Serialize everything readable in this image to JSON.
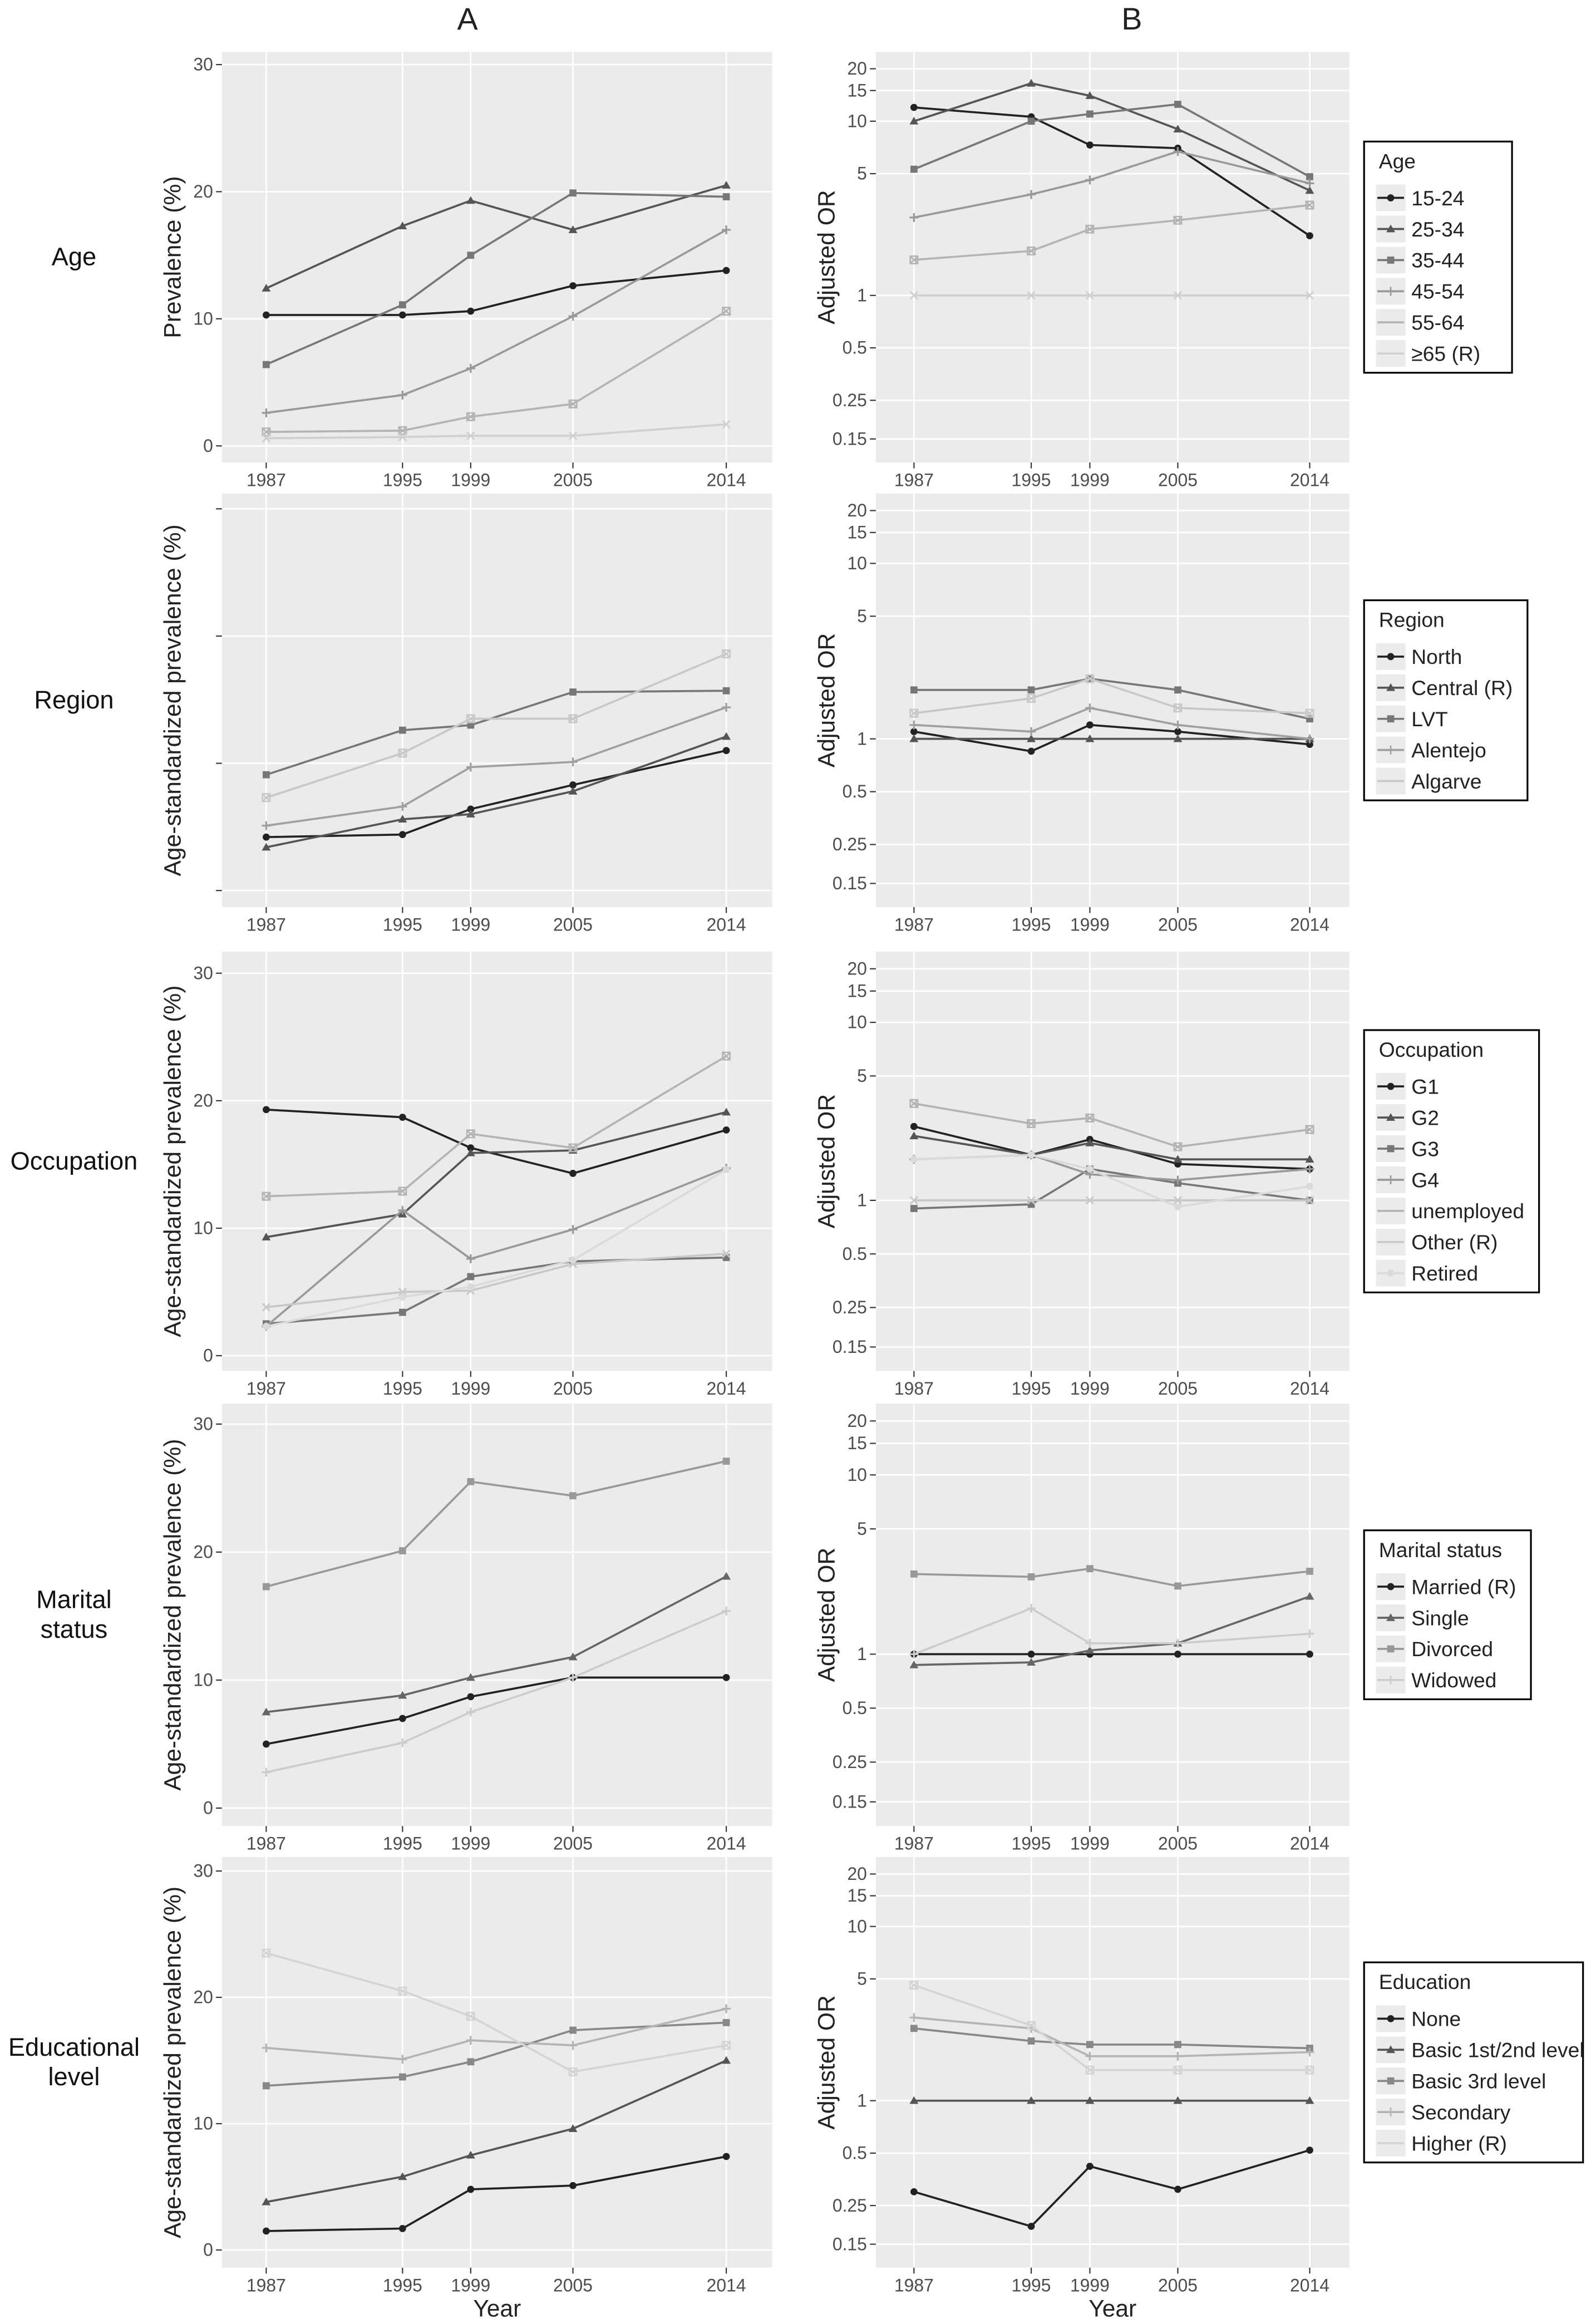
{
  "column_labels": [
    "A",
    "B"
  ],
  "row_labels": [
    "Age",
    "Region",
    "Occupation",
    "Marital status",
    "Educational level"
  ],
  "chart_data": [
    {
      "type": "line",
      "ylabel": "Prevalence (%)",
      "x": [
        1987,
        1995,
        1999,
        2005,
        2014
      ],
      "xlim": [
        1984.4,
        2016.7
      ],
      "xticks": [
        1987,
        1995,
        1999,
        2005,
        2014
      ],
      "ylim": [
        -1.3,
        31
      ],
      "yticks": [
        0,
        10,
        20,
        30
      ],
      "log_y": false,
      "grid": true,
      "series": [
        {
          "color": "#222222",
          "values": [
            10.3,
            10.3,
            10.6,
            12.6,
            13.8
          ]
        },
        {
          "color": "#555555",
          "values": [
            12.4,
            17.3,
            19.3,
            17.0,
            20.5
          ]
        },
        {
          "color": "#777777",
          "values": [
            6.4,
            11.1,
            15.0,
            19.9,
            19.6
          ]
        },
        {
          "color": "#999999",
          "values": [
            2.6,
            4.0,
            6.1,
            10.2,
            17.0
          ]
        },
        {
          "color": "#b4b4b4",
          "values": [
            1.1,
            1.2,
            2.3,
            3.3,
            10.6
          ]
        },
        {
          "color": "#d0d0d0",
          "values": [
            0.6,
            0.7,
            0.8,
            0.8,
            1.7
          ]
        }
      ]
    },
    {
      "type": "line",
      "ylabel": "Adjusted OR",
      "legend_title": "Age",
      "x": [
        1987,
        1995,
        1999,
        2005,
        2014
      ],
      "xlim": [
        1984.4,
        2016.7
      ],
      "xticks": [
        1987,
        1995,
        1999,
        2005,
        2014
      ],
      "ylim": [
        0.11,
        25
      ],
      "yticks": [
        0.15,
        0.25,
        0.5,
        1,
        5,
        10,
        15,
        20
      ],
      "log_y": true,
      "grid": true,
      "series": [
        {
          "name": "15-24",
          "color": "#222222",
          "values": [
            12,
            10.6,
            7.3,
            7,
            2.2
          ]
        },
        {
          "name": "25-34",
          "color": "#555555",
          "values": [
            10,
            16.5,
            14,
            9,
            4
          ]
        },
        {
          "name": "35-44",
          "color": "#777777",
          "values": [
            5.3,
            10,
            11,
            12.5,
            4.8
          ]
        },
        {
          "name": "45-54",
          "color": "#999999",
          "values": [
            2.8,
            3.8,
            4.6,
            6.7,
            4.4
          ]
        },
        {
          "name": "55-64",
          "color": "#b4b4b4",
          "values": [
            1.6,
            1.8,
            2.4,
            2.7,
            3.3
          ]
        },
        {
          "name": "≥65 (R)",
          "color": "#d0d0d0",
          "values": [
            1,
            1,
            1,
            1,
            1
          ]
        }
      ]
    },
    {
      "type": "line",
      "ylabel": "Age-standardized prevalence (%)",
      "x": [
        1987,
        1995,
        1999,
        2005,
        2014
      ],
      "xlim": [
        1984.4,
        2016.7
      ],
      "xticks": [
        1987,
        1995,
        1999,
        2005,
        2014
      ],
      "ylim": [
        -1.3,
        31.2
      ],
      "yticks": [
        0,
        10,
        20,
        30
      ],
      "ytick_labels": false,
      "log_y": false,
      "grid": true,
      "series": [
        {
          "color": "#222222",
          "values": [
            4.2,
            4.4,
            6.4,
            8.3,
            11.0
          ]
        },
        {
          "color": "#555555",
          "values": [
            3.4,
            5.6,
            6.0,
            7.8,
            12.1
          ]
        },
        {
          "color": "#777777",
          "values": [
            9.1,
            12.6,
            13.0,
            15.6,
            15.7
          ]
        },
        {
          "color": "#a0a0a0",
          "values": [
            5.1,
            6.6,
            9.7,
            10.1,
            14.4
          ]
        },
        {
          "color": "#c8c8c8",
          "values": [
            7.3,
            10.8,
            13.5,
            13.5,
            18.6
          ]
        }
      ]
    },
    {
      "type": "line",
      "ylabel": "Adjusted OR",
      "legend_title": "Region",
      "x": [
        1987,
        1995,
        1999,
        2005,
        2014
      ],
      "xlim": [
        1984.4,
        2016.7
      ],
      "xticks": [
        1987,
        1995,
        1999,
        2005,
        2014
      ],
      "ylim": [
        0.11,
        25
      ],
      "yticks": [
        0.15,
        0.25,
        0.5,
        1,
        5,
        10,
        15,
        20
      ],
      "log_y": true,
      "grid": true,
      "series": [
        {
          "name": "North",
          "color": "#222222",
          "values": [
            1.1,
            0.85,
            1.2,
            1.1,
            0.93
          ]
        },
        {
          "name": "Central (R)",
          "color": "#555555",
          "values": [
            1,
            1,
            1,
            1,
            1
          ]
        },
        {
          "name": "LVT",
          "color": "#777777",
          "values": [
            1.9,
            1.9,
            2.2,
            1.9,
            1.3
          ]
        },
        {
          "name": "Alentejo",
          "color": "#a0a0a0",
          "values": [
            1.2,
            1.1,
            1.5,
            1.2,
            1.0
          ]
        },
        {
          "name": "Algarve",
          "color": "#c8c8c8",
          "values": [
            1.4,
            1.7,
            2.2,
            1.5,
            1.4
          ]
        }
      ]
    },
    {
      "type": "line",
      "ylabel": "Age-standardized prevalence (%)",
      "x": [
        1987,
        1995,
        1999,
        2005,
        2014
      ],
      "xlim": [
        1984.4,
        2016.7
      ],
      "xticks": [
        1987,
        1995,
        1999,
        2005,
        2014
      ],
      "ylim": [
        -1.2,
        31.7
      ],
      "yticks": [
        0,
        10,
        20,
        30
      ],
      "log_y": false,
      "grid": true,
      "series": [
        {
          "color": "#222222",
          "values": [
            19.3,
            18.7,
            16.3,
            14.3,
            17.7
          ]
        },
        {
          "color": "#555555",
          "values": [
            9.3,
            11.1,
            15.9,
            16.1,
            19.1
          ]
        },
        {
          "color": "#777777",
          "values": [
            2.5,
            3.4,
            6.2,
            7.4,
            7.7
          ]
        },
        {
          "color": "#999999",
          "values": [
            2.3,
            11.4,
            7.6,
            9.9,
            14.7
          ]
        },
        {
          "color": "#b4b4b4",
          "values": [
            12.5,
            12.9,
            17.4,
            16.3,
            23.5
          ]
        },
        {
          "color": "#c8c8c8",
          "values": [
            3.8,
            5.0,
            5.1,
            7.2,
            8.0
          ]
        },
        {
          "color": "#dadada",
          "values": [
            2.3,
            4.6,
            5.4,
            7.5,
            14.6
          ]
        }
      ]
    },
    {
      "type": "line",
      "ylabel": "Adjusted OR",
      "legend_title": "Occupation",
      "x": [
        1987,
        1995,
        1999,
        2005,
        2014
      ],
      "xlim": [
        1984.4,
        2016.7
      ],
      "xticks": [
        1987,
        1995,
        1999,
        2005,
        2014
      ],
      "ylim": [
        0.11,
        25
      ],
      "yticks": [
        0.15,
        0.25,
        0.5,
        1,
        5,
        10,
        15,
        20
      ],
      "log_y": true,
      "grid": true,
      "series": [
        {
          "name": "G1",
          "color": "#222222",
          "values": [
            2.6,
            1.8,
            2.2,
            1.6,
            1.5
          ]
        },
        {
          "name": "G2",
          "color": "#555555",
          "values": [
            2.3,
            1.8,
            2.1,
            1.7,
            1.7
          ]
        },
        {
          "name": "G3",
          "color": "#777777",
          "values": [
            0.9,
            0.95,
            1.5,
            1.25,
            1.0
          ]
        },
        {
          "name": "G4",
          "color": "#999999",
          "values": [
            1.7,
            1.8,
            1.4,
            1.3,
            1.5
          ]
        },
        {
          "name": "unemployed",
          "color": "#b4b4b4",
          "values": [
            3.5,
            2.7,
            2.9,
            2.0,
            2.5
          ]
        },
        {
          "name": "Other (R)",
          "color": "#c8c8c8",
          "values": [
            1,
            1,
            1,
            1,
            1
          ]
        },
        {
          "name": "Retired",
          "color": "#dadada",
          "values": [
            1.7,
            1.8,
            1.5,
            0.92,
            1.2
          ]
        }
      ]
    },
    {
      "type": "line",
      "ylabel": "Age-standardized prevalence (%)",
      "x": [
        1987,
        1995,
        1999,
        2005,
        2014
      ],
      "xlim": [
        1984.4,
        2016.7
      ],
      "xticks": [
        1987,
        1995,
        1999,
        2005,
        2014
      ],
      "ylim": [
        -1.4,
        31.6
      ],
      "yticks": [
        0,
        10,
        20,
        30
      ],
      "log_y": false,
      "grid": true,
      "series": [
        {
          "color": "#222222",
          "values": [
            5.0,
            7.0,
            8.7,
            10.2,
            10.2
          ]
        },
        {
          "color": "#666666",
          "values": [
            7.5,
            8.8,
            10.2,
            11.8,
            18.1
          ]
        },
        {
          "color": "#999999",
          "values": [
            17.3,
            20.1,
            25.5,
            24.4,
            27.1
          ]
        },
        {
          "color": "#cccccc",
          "values": [
            2.8,
            5.1,
            7.5,
            10.2,
            15.4
          ]
        }
      ]
    },
    {
      "type": "line",
      "ylabel": "Adjusted OR",
      "legend_title": "Marital status",
      "x": [
        1987,
        1995,
        1999,
        2005,
        2014
      ],
      "xlim": [
        1984.4,
        2016.7
      ],
      "xticks": [
        1987,
        1995,
        1999,
        2005,
        2014
      ],
      "ylim": [
        0.11,
        25
      ],
      "yticks": [
        0.15,
        0.25,
        0.5,
        1,
        5,
        10,
        15,
        20
      ],
      "log_y": true,
      "grid": true,
      "series": [
        {
          "name": "Married (R)",
          "color": "#222222",
          "values": [
            1,
            1,
            1,
            1,
            1
          ]
        },
        {
          "name": "Single",
          "color": "#666666",
          "values": [
            0.87,
            0.9,
            1.05,
            1.15,
            2.1
          ]
        },
        {
          "name": "Divorced",
          "color": "#999999",
          "values": [
            2.8,
            2.7,
            3.0,
            2.4,
            2.9
          ]
        },
        {
          "name": "Widowed",
          "color": "#cccccc",
          "values": [
            1,
            1.8,
            1.15,
            1.15,
            1.3
          ]
        }
      ]
    },
    {
      "type": "line",
      "ylabel": "Age-standardized prevalence (%)",
      "xlabel": "Year",
      "x": [
        1987,
        1995,
        1999,
        2005,
        2014
      ],
      "xlim": [
        1984.4,
        2016.7
      ],
      "xticks": [
        1987,
        1995,
        1999,
        2005,
        2014
      ],
      "ylim": [
        -1.4,
        31.1
      ],
      "yticks": [
        0,
        10,
        20,
        30
      ],
      "log_y": false,
      "grid": true,
      "series": [
        {
          "color": "#222222",
          "values": [
            1.5,
            1.7,
            4.8,
            5.1,
            7.4
          ]
        },
        {
          "color": "#555555",
          "values": [
            3.8,
            5.8,
            7.5,
            9.6,
            15.0
          ]
        },
        {
          "color": "#888888",
          "values": [
            13.0,
            13.7,
            14.9,
            17.4,
            18.0
          ]
        },
        {
          "color": "#b4b4b4",
          "values": [
            16.0,
            15.1,
            16.6,
            16.2,
            19.1
          ]
        },
        {
          "color": "#d4d4d4",
          "values": [
            23.5,
            20.5,
            18.5,
            14.1,
            16.2
          ]
        }
      ]
    },
    {
      "type": "line",
      "ylabel": "Adjusted OR",
      "xlabel": "Year",
      "legend_title": "Education",
      "x": [
        1987,
        1995,
        1999,
        2005,
        2014
      ],
      "xlim": [
        1984.4,
        2016.7
      ],
      "xticks": [
        1987,
        1995,
        1999,
        2005,
        2014
      ],
      "ylim": [
        0.11,
        25
      ],
      "yticks": [
        0.15,
        0.25,
        0.5,
        1,
        5,
        10,
        15,
        20
      ],
      "log_y": true,
      "grid": true,
      "series": [
        {
          "name": "None",
          "color": "#222222",
          "values": [
            0.3,
            0.19,
            0.42,
            0.31,
            0.52
          ]
        },
        {
          "name": "Basic 1st/2nd level",
          "color": "#555555",
          "values": [
            1,
            1,
            1,
            1,
            1
          ]
        },
        {
          "name": "Basic 3rd level",
          "color": "#888888",
          "values": [
            2.6,
            2.2,
            2.1,
            2.1,
            2.0
          ]
        },
        {
          "name": "Secondary",
          "color": "#b4b4b4",
          "values": [
            3.0,
            2.6,
            1.8,
            1.8,
            1.9
          ]
        },
        {
          "name": "Higher (R)",
          "color": "#d4d4d4",
          "values": [
            4.6,
            2.7,
            1.5,
            1.5,
            1.5
          ]
        }
      ]
    }
  ]
}
